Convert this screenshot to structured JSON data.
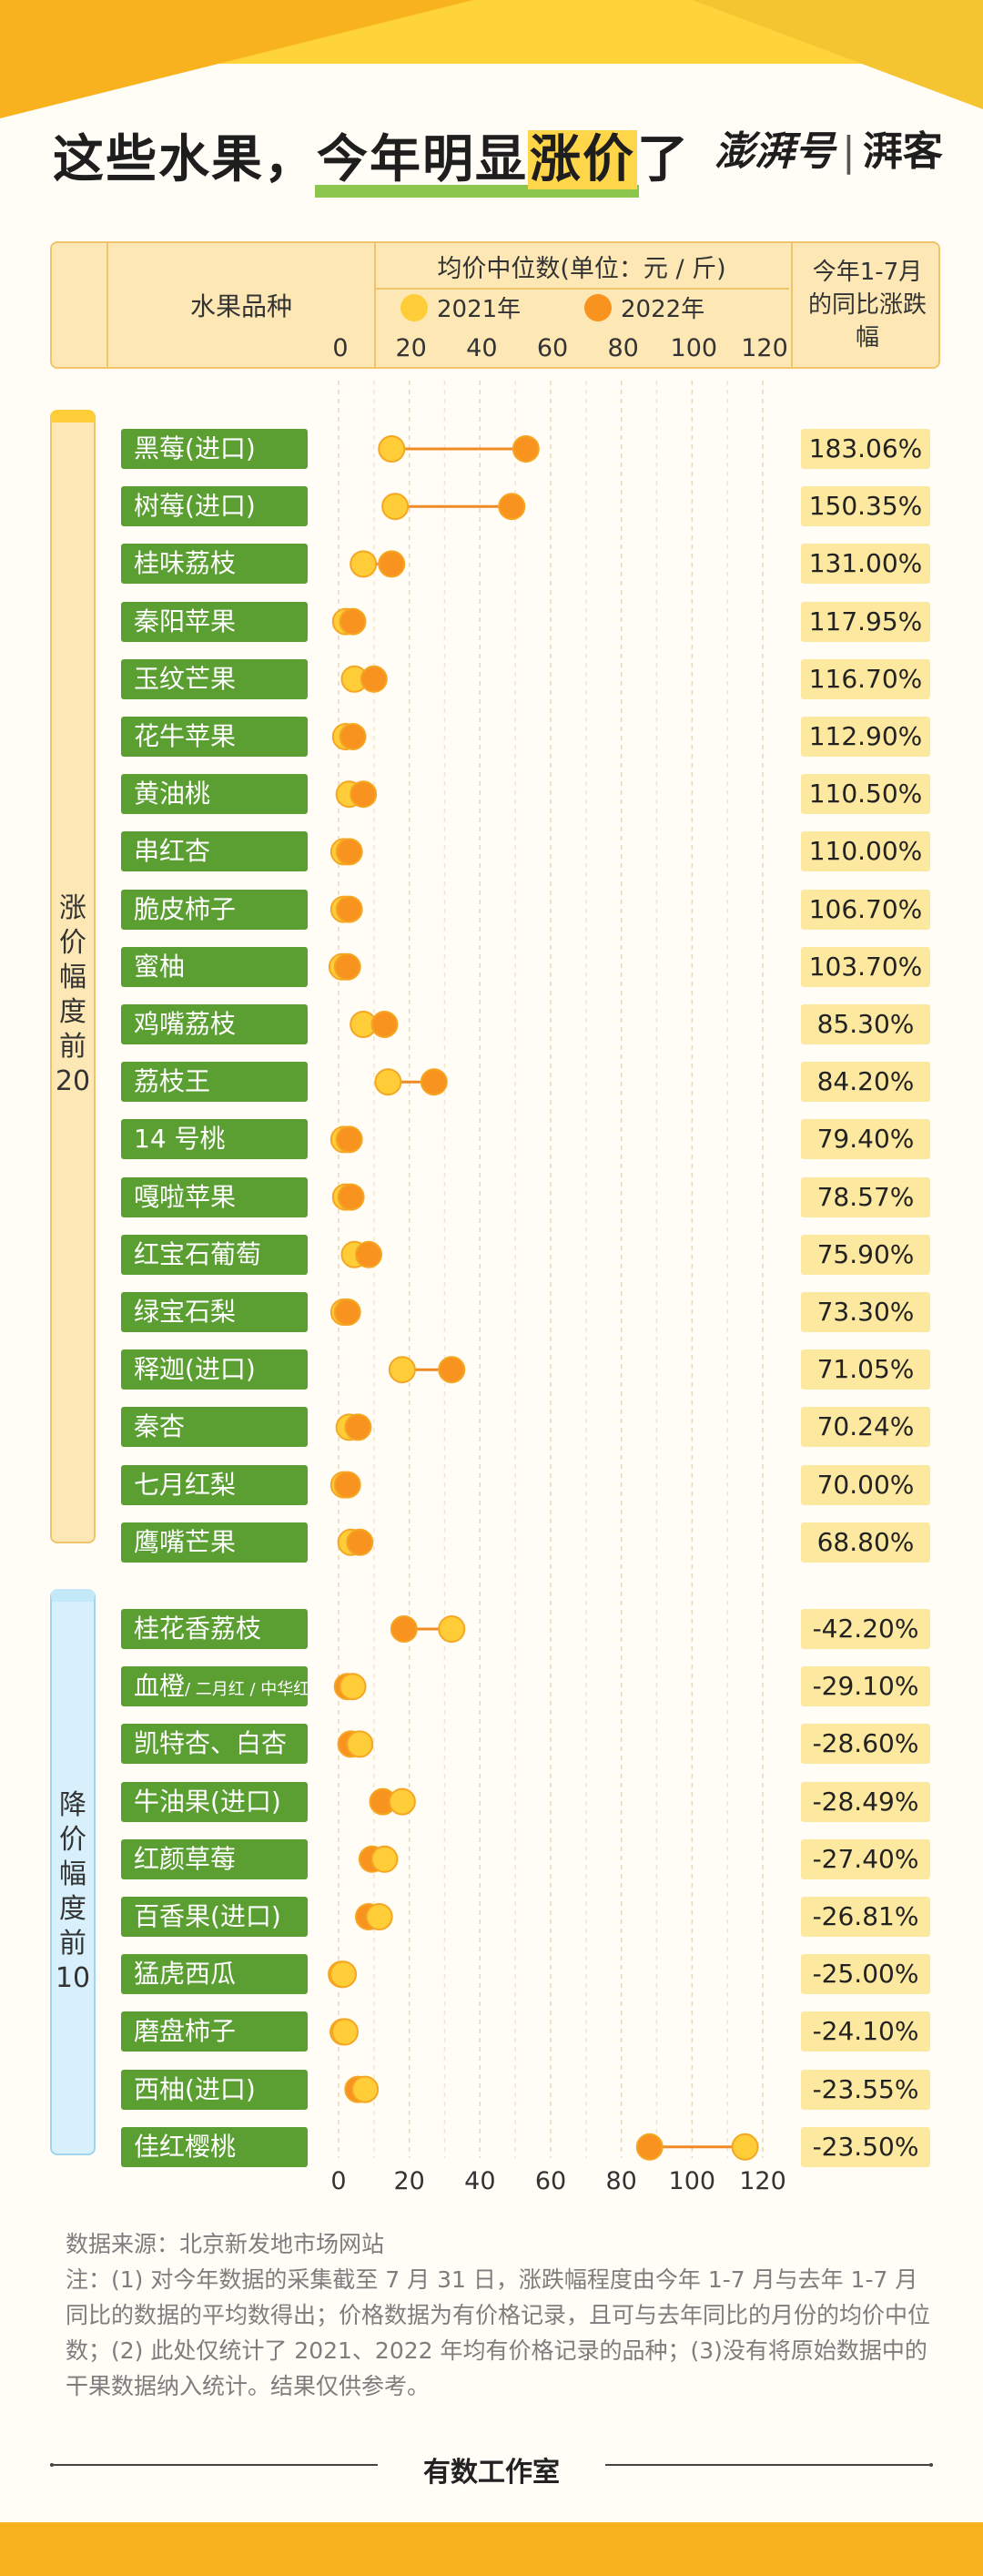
{
  "title": {
    "pre": "这些水果，",
    "highlight1": "今年明显",
    "highlight2": "涨价",
    "post": "了"
  },
  "logo": {
    "main": "澎湃号",
    "sub": "湃客"
  },
  "header": {
    "col_name": "水果品种",
    "col_mid": "均价中位数(单位：元 / 斤)",
    "legend_2021": "2021年",
    "legend_2022": "2022年",
    "col_last": "今年1-7月的同比涨跌幅"
  },
  "side": {
    "up": "涨价幅度前20",
    "down": "降价幅度前10"
  },
  "colors": {
    "c2021": "#ffcd38",
    "c2022": "#f7931e",
    "line": "#f08a24",
    "tag": "#5b9f33",
    "pct_bg": "#fde8a0"
  },
  "chart_data": {
    "type": "dumbbell",
    "xlim": [
      0,
      120
    ],
    "xticks": [
      0,
      20,
      40,
      60,
      80,
      100,
      120
    ],
    "series": [
      {
        "name": "2021年"
      },
      {
        "name": "2022年"
      }
    ],
    "rows_up": [
      {
        "name": "黑莓(进口)",
        "v2021": 15,
        "v2022": 53,
        "pct": "183.06%"
      },
      {
        "name": "树莓(进口)",
        "v2021": 16,
        "v2022": 49,
        "pct": "150.35%"
      },
      {
        "name": "桂味荔枝",
        "v2021": 7,
        "v2022": 15,
        "pct": "131.00%"
      },
      {
        "name": "秦阳苹果",
        "v2021": 2,
        "v2022": 4,
        "pct": "117.95%"
      },
      {
        "name": "玉纹芒果",
        "v2021": 4.5,
        "v2022": 10,
        "pct": "116.70%"
      },
      {
        "name": "花牛苹果",
        "v2021": 2,
        "v2022": 4,
        "pct": "112.90%"
      },
      {
        "name": "黄油桃",
        "v2021": 3,
        "v2022": 7,
        "pct": "110.50%"
      },
      {
        "name": "串红杏",
        "v2021": 1.5,
        "v2022": 3,
        "pct": "110.00%"
      },
      {
        "name": "脆皮柿子",
        "v2021": 1.5,
        "v2022": 3,
        "pct": "106.70%"
      },
      {
        "name": "蜜柚",
        "v2021": 1,
        "v2022": 2.5,
        "pct": "103.70%"
      },
      {
        "name": "鸡嘴荔枝",
        "v2021": 7,
        "v2022": 13,
        "pct": "85.30%"
      },
      {
        "name": "荔枝王",
        "v2021": 14,
        "v2022": 27,
        "pct": "84.20%"
      },
      {
        "name": "14 号桃",
        "v2021": 1.5,
        "v2022": 3,
        "pct": "79.40%"
      },
      {
        "name": "嘎啦苹果",
        "v2021": 2,
        "v2022": 3.5,
        "pct": "78.57%"
      },
      {
        "name": "红宝石葡萄",
        "v2021": 4.5,
        "v2022": 8.5,
        "pct": "75.90%"
      },
      {
        "name": "绿宝石梨",
        "v2021": 1.5,
        "v2022": 2.5,
        "pct": "73.30%"
      },
      {
        "name": "释迦(进口)",
        "v2021": 18,
        "v2022": 32,
        "pct": "71.05%"
      },
      {
        "name": "秦杏",
        "v2021": 3,
        "v2022": 5.5,
        "pct": "70.24%"
      },
      {
        "name": "七月红梨",
        "v2021": 1.5,
        "v2022": 2.5,
        "pct": "70.00%"
      },
      {
        "name": "鹰嘴芒果",
        "v2021": 3.5,
        "v2022": 6,
        "pct": "68.80%"
      }
    ],
    "rows_down": [
      {
        "name": "桂花香荔枝",
        "sub": "",
        "v2021": 32,
        "v2022": 18.5,
        "pct": "-42.20%"
      },
      {
        "name": "血橙",
        "sub": "/ 二月红 / 中华红",
        "v2021": 4,
        "v2022": 2.5,
        "pct": "-29.10%"
      },
      {
        "name": "凯特杏、白杏",
        "sub": "",
        "v2021": 6,
        "v2022": 3.5,
        "pct": "-28.60%"
      },
      {
        "name": "牛油果(进口)",
        "sub": "",
        "v2021": 18,
        "v2022": 12.5,
        "pct": "-28.49%"
      },
      {
        "name": "红颜草莓",
        "sub": "",
        "v2021": 13,
        "v2022": 9.5,
        "pct": "-27.40%"
      },
      {
        "name": "百香果(进口)",
        "sub": "",
        "v2021": 11.5,
        "v2022": 8.5,
        "pct": "-26.81%"
      },
      {
        "name": "猛虎西瓜",
        "sub": "",
        "v2021": 1.3,
        "v2022": 0.8,
        "pct": "-25.00%"
      },
      {
        "name": "磨盘柿子",
        "sub": "",
        "v2021": 1.8,
        "v2022": 1.3,
        "pct": "-24.10%"
      },
      {
        "name": "西柚(进口)",
        "sub": "",
        "v2021": 7.5,
        "v2022": 5.5,
        "pct": "-23.55%"
      },
      {
        "name": "佳红樱桃",
        "sub": "",
        "v2021": 115,
        "v2022": 88,
        "pct": "-23.50%"
      }
    ]
  },
  "source": {
    "line1": "数据来源：北京新发地市场网站",
    "line2": "注：(1) 对今年数据的采集截至 7 月 31 日，涨跌幅程度由今年 1-7 月与去年 1-7 月同比的数据的平均数得出；价格数据为有价格记录，且可与去年同比的月份的均价中位数；(2) 此处仅统计了 2021、2022 年均有价格记录的品种；(3)没有将原始数据中的干果数据纳入统计。结果仅供参考。"
  },
  "footer": "有数工作室"
}
